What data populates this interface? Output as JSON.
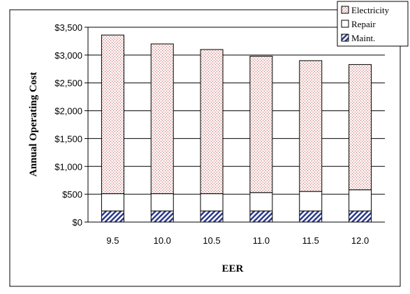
{
  "chart_data": {
    "type": "bar",
    "stacked": true,
    "xlabel": "EER",
    "ylabel": "Annual Operating Cost",
    "ylim": [
      0,
      3500
    ],
    "ytick_step": 500,
    "yticks": [
      "$0",
      "$500",
      "$1,000",
      "$1,500",
      "$2,000",
      "$2,500",
      "$3,000",
      "$3,500"
    ],
    "categories": [
      "9.5",
      "10.0",
      "10.5",
      "11.0",
      "11.5",
      "12.0"
    ],
    "grid": true,
    "legend_position": "top-right",
    "series": [
      {
        "name": "Maint.",
        "values": [
          200,
          200,
          200,
          200,
          200,
          200
        ],
        "color": "#2c3a8c",
        "pattern": "diagonal-hatch"
      },
      {
        "name": "Repair",
        "values": [
          310,
          310,
          310,
          330,
          350,
          380
        ],
        "color": "#ffffff",
        "pattern": "none"
      },
      {
        "name": "Electricity",
        "values": [
          2850,
          2690,
          2590,
          2450,
          2350,
          2250
        ],
        "color": "#c07070",
        "pattern": "dots"
      }
    ],
    "legend_order": [
      "Electricity",
      "Repair",
      "Maint."
    ]
  }
}
